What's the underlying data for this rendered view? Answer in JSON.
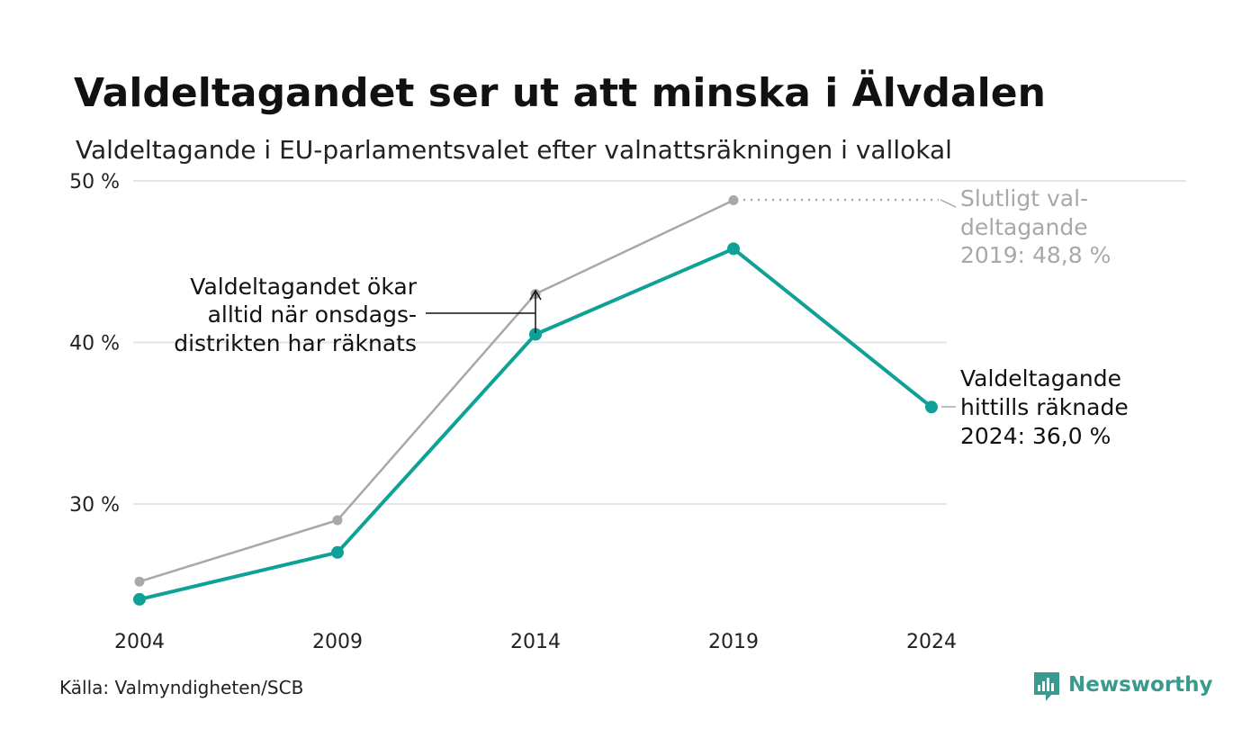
{
  "title": "Valdeltagandet ser ut att minska i Älvdalen",
  "subtitle": "Valdeltagande i EU-parlamentsvalet efter valnattsräkningen i vallokal",
  "source": "Källa: Valmyndigheten/SCB",
  "brand": {
    "name": "Newsworthy",
    "logo_icon": "newsworthy-logo-icon",
    "color": "#3a9a8e"
  },
  "colors": {
    "teal": "#0ea197",
    "grey": "#a8a8a8",
    "grid": "#e4e4e4"
  },
  "annotations": {
    "wednesday": [
      "Valdeltagandet ökar",
      "alltid när onsdags-",
      "distrikten har räknats"
    ],
    "final_2019": [
      "Slutligt val-",
      "deltagande",
      "2019: 48,8 %"
    ],
    "current_2024": [
      "Valdeltagande",
      "hittills räknade",
      "2024: 36,0 %"
    ]
  },
  "chart_data": {
    "type": "line",
    "title": "Valdeltagandet ser ut att minska i Älvdalen",
    "subtitle": "Valdeltagande i EU-parlamentsvalet efter valnattsräkningen i vallokal",
    "xlabel": "",
    "ylabel": "",
    "x": [
      2004,
      2009,
      2014,
      2019,
      2024
    ],
    "x_tick_labels": [
      "2004",
      "2009",
      "2014",
      "2019",
      "2024"
    ],
    "y_ticks": [
      30,
      40,
      50
    ],
    "y_tick_labels": [
      "30 %",
      "40 %",
      "50 %"
    ],
    "ylim": [
      23,
      50
    ],
    "grid": true,
    "legend": "none",
    "series": [
      {
        "key": "final",
        "values": [
          25.2,
          29.0,
          43.0,
          48.8,
          null
        ],
        "color": "#a8a8a8"
      },
      {
        "key": "election_night",
        "values": [
          24.1,
          27.0,
          40.5,
          45.8,
          36.0
        ],
        "color": "#0ea197"
      }
    ]
  }
}
